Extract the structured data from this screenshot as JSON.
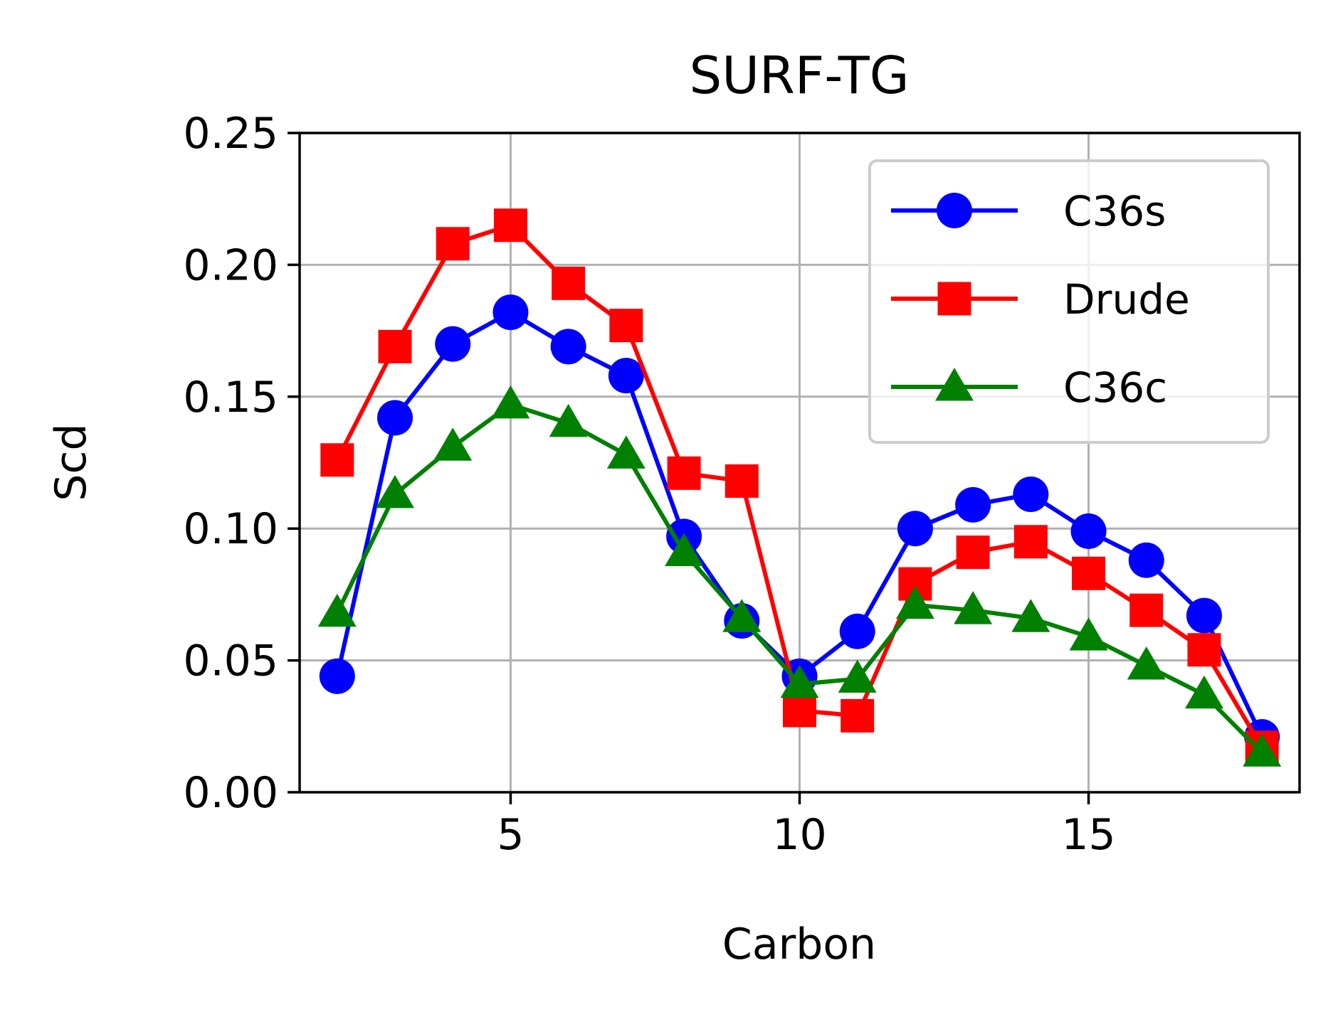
{
  "chart_data": {
    "type": "line",
    "title": "SURF-TG",
    "xlabel": "Carbon",
    "ylabel": "Scd",
    "xlim": [
      1.35,
      18.65
    ],
    "ylim": [
      0.0,
      0.25
    ],
    "xticks": [
      5,
      10,
      15
    ],
    "xtick_labels": [
      "5",
      "10",
      "15"
    ],
    "yticks": [
      0.0,
      0.05,
      0.1,
      0.15,
      0.2,
      0.25
    ],
    "ytick_labels": [
      "0.00",
      "0.05",
      "0.10",
      "0.15",
      "0.20",
      "0.25"
    ],
    "grid": true,
    "legend_position": "upper right",
    "x": [
      2,
      3,
      4,
      5,
      6,
      7,
      8,
      9,
      10,
      11,
      12,
      13,
      14,
      15,
      16,
      17,
      18
    ],
    "series": [
      {
        "name": "C36s",
        "color": "#0000ff",
        "marker": "circle",
        "values": [
          0.044,
          0.142,
          0.17,
          0.182,
          0.169,
          0.158,
          0.097,
          0.065,
          0.044,
          0.061,
          0.1,
          0.109,
          0.113,
          0.099,
          0.088,
          0.067,
          0.021
        ]
      },
      {
        "name": "Drude",
        "color": "#ff0000",
        "marker": "square",
        "values": [
          0.126,
          0.169,
          0.208,
          0.215,
          0.193,
          0.177,
          0.121,
          0.118,
          0.031,
          0.029,
          0.079,
          0.091,
          0.095,
          0.083,
          0.069,
          0.054,
          0.017
        ]
      },
      {
        "name": "C36c",
        "color": "#008000",
        "marker": "triangle",
        "values": [
          0.068,
          0.113,
          0.131,
          0.147,
          0.14,
          0.128,
          0.091,
          0.066,
          0.041,
          0.043,
          0.071,
          0.069,
          0.066,
          0.059,
          0.048,
          0.037,
          0.015
        ]
      }
    ]
  }
}
